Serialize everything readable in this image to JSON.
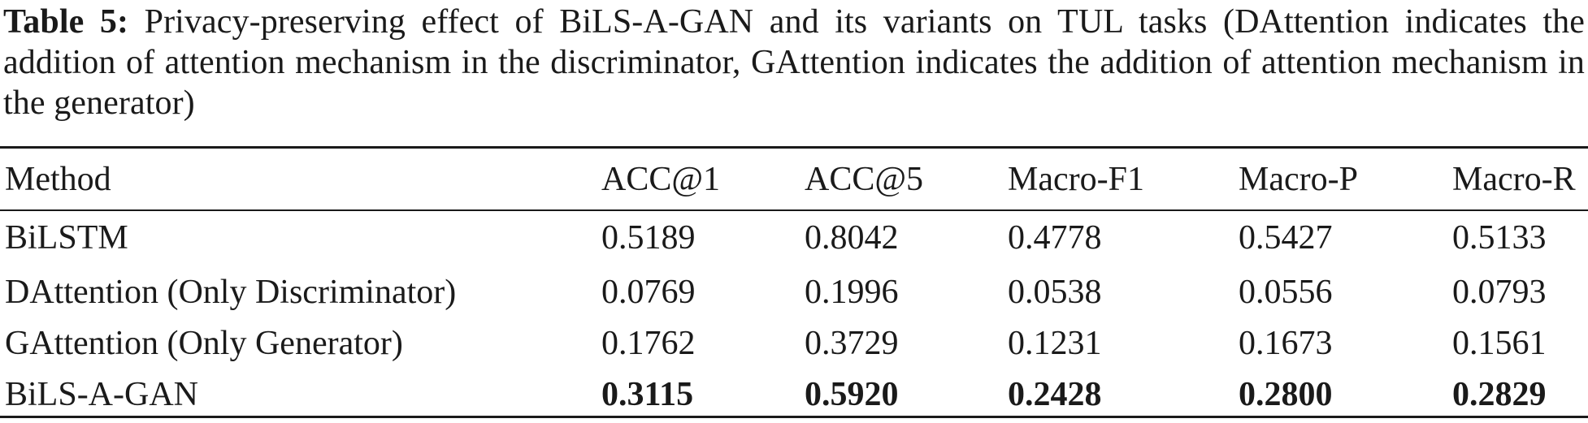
{
  "caption": {
    "label": "Table 5:",
    "text": "Privacy-preserving effect of BiLS-A-GAN and its variants on TUL tasks (DAttention indicates the addition of attention mechanism in the discriminator, GAttention indicates the addition of attention mechanism in the generator)"
  },
  "table": {
    "headers": [
      "Method",
      "ACC@1",
      "ACC@5",
      "Macro-F1",
      "Macro-P",
      "Macro-R"
    ],
    "rows": [
      {
        "method": "BiLSTM",
        "acc1": "0.5189",
        "acc5": "0.8042",
        "f1": "0.4778",
        "p": "0.5427",
        "r": "0.5133"
      },
      {
        "method": "DAttention (Only Discriminator)",
        "acc1": "0.0769",
        "acc5": "0.1996",
        "f1": "0.0538",
        "p": "0.0556",
        "r": "0.0793"
      },
      {
        "method": "GAttention (Only Generator)",
        "acc1": "0.1762",
        "acc5": "0.3729",
        "f1": "0.1231",
        "p": "0.1673",
        "r": "0.1561"
      },
      {
        "method": "BiLS-A-GAN",
        "acc1": "0.3115",
        "acc5": "0.5920",
        "f1": "0.2428",
        "p": "0.2800",
        "r": "0.2829"
      }
    ]
  }
}
